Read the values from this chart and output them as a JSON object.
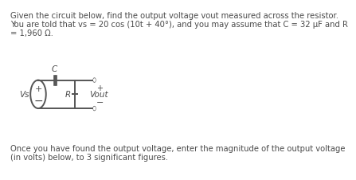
{
  "title_line1": "Given the circuit below, find the output voltage vout measured across the resistor.",
  "title_line2": "You are told that vs = 20 cos (10t + 40°), and you may assume that C = 32 μF and R",
  "title_line3": "= 1,960 Ω.",
  "footer_line1": "Once you have found the output voltage, enter the magnitude of the output voltage",
  "footer_line2": "(in volts) below, to 3 significant figures.",
  "bg_color": "#ffffff",
  "text_color": "#4a4a4a",
  "circuit_color": "#555555",
  "font_size_text": 7.2,
  "font_size_circuit": 7.5
}
